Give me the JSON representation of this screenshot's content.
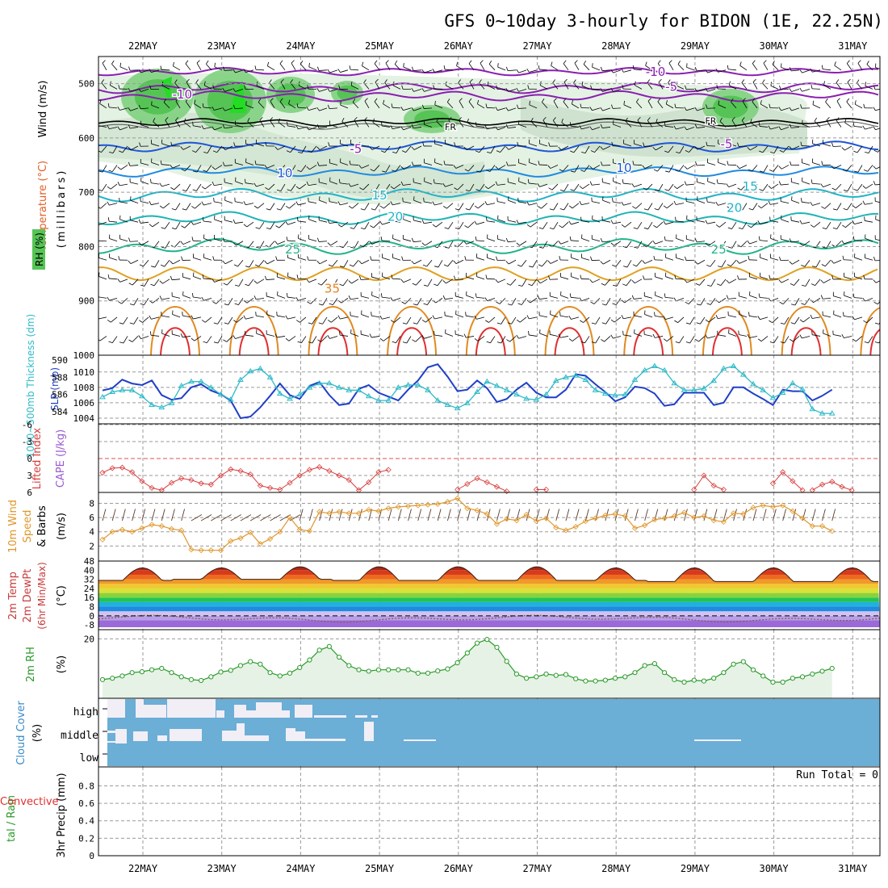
{
  "title": "GFS 0~10day 3-hourly for BIDON (1E, 22.25N)",
  "dates": [
    "22MAY",
    "23MAY",
    "24MAY",
    "25MAY",
    "26MAY",
    "27MAY",
    "28MAY",
    "29MAY",
    "30MAY",
    "31MAY"
  ],
  "colors": {
    "rh_green": "#55c455",
    "temp_purple": "#8a1fb0",
    "temp_blue": "#1f55d6",
    "temp_cyan": "#1fb4c8",
    "temp_orange": "#e0821f",
    "temp_red": "#e03030",
    "slp": "#1f3fc8",
    "thickness": "#2fbac8",
    "lifted_index": "#d83c3c",
    "wind10m": "#e0962a",
    "rh2m": "#2a9a2a",
    "cloud_cover": "#6baed6",
    "cloud_clear": "#f2eef6"
  },
  "chart_data": [
    {
      "panel": "upper-air",
      "type": "heatmap",
      "labels": {
        "wind": "Wind (m/s)",
        "temperature": "Temperature (°C)",
        "rh": "RH (%)",
        "pressure": "(millibars)"
      },
      "y_ticks": [
        500,
        600,
        700,
        800,
        900,
        1000
      ],
      "ylim": [
        1000,
        450
      ],
      "isotherms": [
        {
          "label": "-10",
          "x": 0.5,
          "p": 520
        },
        {
          "label": "-10",
          "x": 6.5,
          "p": 478
        },
        {
          "label": "-5",
          "x": 6.7,
          "p": 506
        },
        {
          "label": "FR",
          "x": 3.9,
          "p": 578
        },
        {
          "label": "FR",
          "x": 7.2,
          "p": 567
        },
        {
          "label": "-5",
          "x": 2.7,
          "p": 620
        },
        {
          "label": "-5",
          "x": 7.4,
          "p": 611
        },
        {
          "label": "10",
          "x": 1.8,
          "p": 665
        },
        {
          "label": "10",
          "x": 6.1,
          "p": 655
        },
        {
          "label": "15",
          "x": 3.0,
          "p": 706
        },
        {
          "label": "15",
          "x": 7.7,
          "p": 689
        },
        {
          "label": "20",
          "x": 3.2,
          "p": 745
        },
        {
          "label": "20",
          "x": 7.5,
          "p": 729
        },
        {
          "label": "25",
          "x": 1.9,
          "p": 805
        },
        {
          "label": "25",
          "x": 7.3,
          "p": 805
        },
        {
          "label": "35",
          "x": 2.4,
          "p": 877
        }
      ]
    },
    {
      "panel": "slp-thickness",
      "type": "line",
      "labels": {
        "thickness": "1000~500mb Thickness (dm)",
        "slp": "SLP (mb)"
      },
      "thickness_ticks": [
        584,
        586,
        588,
        590
      ],
      "slp_ticks": [
        1004,
        1006,
        1008,
        1010
      ],
      "x": [
        0.0,
        0.125,
        0.25,
        0.375,
        0.5,
        0.625,
        0.75,
        0.875,
        1.0,
        1.125,
        1.25,
        1.375,
        1.5,
        1.625,
        1.75,
        1.875,
        2.0,
        2.125,
        2.25,
        2.375,
        2.5,
        2.625,
        2.75,
        2.875,
        3.0,
        3.125,
        3.25,
        3.375,
        3.5,
        3.625,
        3.75,
        3.875,
        4.0,
        4.125,
        4.25,
        4.375,
        4.5,
        4.625,
        4.75,
        4.875,
        5.0,
        5.125,
        5.25,
        5.375,
        5.5,
        5.625,
        5.75,
        5.875,
        6.0,
        6.125,
        6.25,
        6.375,
        6.5,
        6.625,
        6.75,
        6.875,
        7.0,
        7.125,
        7.25,
        7.375,
        7.5,
        7.625,
        7.75,
        7.875,
        8.0,
        8.125,
        8.25,
        8.375,
        8.5,
        8.625,
        8.75,
        8.875,
        9.0,
        9.125,
        9.25
      ],
      "series": [
        {
          "name": "SLP (mb)",
          "values": [
            1007.6,
            1007.9,
            1009.0,
            1008.5,
            1008.3,
            1008.9,
            1007.0,
            1006.4,
            1006.6,
            1008.0,
            1008.4,
            1007.6,
            1007.1,
            1006.3,
            1004.0,
            1004.2,
            1005.4,
            1006.9,
            1008.5,
            1007.0,
            1006.5,
            1008.2,
            1008.7,
            1007.0,
            1005.7,
            1005.9,
            1007.8,
            1008.3,
            1007.3,
            1006.8,
            1006.3,
            1007.7,
            1008.9,
            1010.6,
            1011.0,
            1009.4,
            1007.5,
            1007.7,
            1008.9,
            1007.9,
            1006.1,
            1006.5,
            1007.7,
            1008.6,
            1007.3,
            1006.7,
            1006.7,
            1007.7,
            1009.7,
            1009.5,
            1008.4,
            1007.4,
            1006.2,
            1006.7,
            1008.1,
            1007.9,
            1007.2,
            1005.6,
            1005.8,
            1007.3,
            1007.3,
            1007.3,
            1005.7,
            1006.0,
            1008.0,
            1008.0,
            1007.2,
            1006.5,
            1005.7,
            1007.7,
            1007.5,
            1007.5,
            1006.3,
            1006.9,
            1007.7
          ]
        },
        {
          "name": "1000~500mb Thickness (dm)",
          "values": [
            585.7,
            586.3,
            586.5,
            586.5,
            585.8,
            584.8,
            584.5,
            585.0,
            587.0,
            587.5,
            587.5,
            586.8,
            586.0,
            585.4,
            587.7,
            588.7,
            589.0,
            588.0,
            586.1,
            585.5,
            586.0,
            586.8,
            587.3,
            587.3,
            586.8,
            586.5,
            586.5,
            585.8,
            585.3,
            585.3,
            586.8,
            587.1,
            587.1,
            586.5,
            585.3,
            584.8,
            584.4,
            585.0,
            586.3,
            587.5,
            587.0,
            586.5,
            586.0,
            585.5,
            585.4,
            586.0,
            587.6,
            588.0,
            588.2,
            587.7,
            586.5,
            586.1,
            585.9,
            586.0,
            587.7,
            588.8,
            589.3,
            588.8,
            587.3,
            586.5,
            586.5,
            586.7,
            587.6,
            589.0,
            589.3,
            588.3,
            587.2,
            586.5,
            585.6,
            586.2,
            587.3,
            586.6,
            584.3,
            583.8,
            583.8
          ]
        }
      ]
    },
    {
      "panel": "cape-li",
      "type": "line",
      "labels": {
        "li": "Lifted Index",
        "cape": "CAPE (J/kg)"
      },
      "li_ticks": [
        -6,
        -3,
        0,
        3,
        6
      ],
      "segments": [
        {
          "x": [
            0.0,
            0.125,
            0.25,
            0.375,
            0.5,
            0.625,
            0.75,
            0.875,
            1.0,
            1.125,
            1.25,
            1.375,
            1.5,
            1.625,
            1.75,
            1.875,
            2.0,
            2.125,
            2.25,
            2.375,
            2.5,
            2.625,
            2.75,
            2.875,
            3.0,
            3.125,
            3.25,
            3.375,
            3.5,
            3.625
          ],
          "values": [
            2.5,
            1.7,
            1.6,
            2.4,
            4.0,
            5.2,
            5.6,
            4.3,
            3.5,
            3.8,
            4.4,
            4.6,
            3.0,
            1.9,
            2.2,
            2.8,
            4.8,
            5.2,
            5.5,
            4.3,
            3.0,
            2.0,
            1.5,
            2.2,
            3.0,
            3.8,
            5.6,
            4.2,
            2.4,
            2.0
          ]
        },
        {
          "x": [
            4.5,
            4.625,
            4.75,
            4.875,
            5.0,
            5.125
          ],
          "values": [
            5.5,
            4.5,
            3.5,
            4.2,
            5.0,
            5.8
          ]
        },
        {
          "x": [
            5.5,
            5.625
          ],
          "values": [
            5.5,
            5.5
          ]
        },
        {
          "x": [
            7.5,
            7.625,
            7.75,
            7.875
          ],
          "values": [
            5.5,
            3.0,
            4.8,
            5.5
          ]
        },
        {
          "x": [
            8.5,
            8.625,
            8.75,
            8.875
          ],
          "values": [
            4.4,
            2.4,
            4.0,
            5.6
          ]
        },
        {
          "x": [
            9.0,
            9.125,
            9.25,
            9.375,
            9.5
          ],
          "values": [
            5.6,
            4.6,
            4.1,
            5.0,
            5.6
          ]
        }
      ]
    },
    {
      "panel": "wind10m",
      "type": "line",
      "labels": {
        "title": "10m Wind Speed & Barbs",
        "unit": "(m/s)"
      },
      "y_ticks": [
        2,
        4,
        6,
        8
      ],
      "x": [
        0.0,
        0.125,
        0.25,
        0.375,
        0.5,
        0.625,
        0.75,
        0.875,
        1.0,
        1.125,
        1.25,
        1.375,
        1.5,
        1.625,
        1.75,
        1.875,
        2.0,
        2.125,
        2.25,
        2.375,
        2.5,
        2.625,
        2.75,
        2.875,
        3.0,
        3.125,
        3.25,
        3.375,
        3.5,
        3.625,
        3.75,
        3.875,
        4.0,
        4.125,
        4.25,
        4.375,
        4.5,
        4.625,
        4.75,
        4.875,
        5.0,
        5.125,
        5.25,
        5.375,
        5.5,
        5.625,
        5.75,
        5.875,
        6.0,
        6.125,
        6.25,
        6.375,
        6.5,
        6.625,
        6.75,
        6.875,
        7.0,
        7.125,
        7.25,
        7.375,
        7.5,
        7.625,
        7.75,
        7.875,
        8.0,
        8.125,
        8.25,
        8.375,
        8.5,
        8.625,
        8.75,
        8.875,
        9.0,
        9.125,
        9.25
      ],
      "values": [
        2.9,
        4.0,
        4.3,
        4.0,
        4.5,
        5.0,
        4.8,
        4.4,
        4.2,
        1.5,
        1.4,
        1.4,
        1.4,
        2.7,
        3.1,
        3.9,
        2.3,
        3.0,
        4.0,
        6.0,
        4.3,
        4.1,
        6.8,
        6.6,
        6.8,
        6.6,
        6.6,
        7.1,
        6.9,
        7.3,
        7.5,
        7.6,
        7.7,
        7.8,
        7.9,
        8.2,
        8.7,
        7.3,
        7.0,
        6.5,
        5.1,
        5.8,
        5.6,
        6.4,
        5.5,
        5.9,
        4.6,
        4.2,
        4.7,
        5.5,
        5.9,
        6.3,
        6.5,
        6.2,
        4.5,
        4.9,
        5.7,
        5.9,
        6.2,
        6.7,
        6.0,
        6.2,
        5.6,
        5.4,
        6.6,
        6.5,
        7.4,
        7.7,
        7.5,
        7.7,
        6.9,
        5.9,
        4.8,
        4.8,
        4.1
      ]
    },
    {
      "panel": "temp2m",
      "type": "area",
      "labels": {
        "title": "2m Temp 2m DewPt (6hr Min/Max)",
        "unit": "(°C)"
      },
      "y_ticks": [
        -8,
        0,
        8,
        16,
        24,
        32,
        40,
        48
      ],
      "temp_min": [
        31,
        32,
        32,
        31,
        31,
        31,
        31,
        30,
        30,
        30
      ],
      "temp_max": [
        42,
        42,
        43,
        43,
        43,
        43,
        42,
        42,
        42,
        42
      ],
      "dewpt_mean": -2.5
    },
    {
      "panel": "rh2m",
      "type": "area",
      "labels": {
        "title": "2m RH",
        "unit": "(%)"
      },
      "y_ticks": [
        20
      ],
      "ylim": [
        0,
        23
      ],
      "x": [
        0.0,
        0.125,
        0.25,
        0.375,
        0.5,
        0.625,
        0.75,
        0.875,
        1.0,
        1.125,
        1.25,
        1.375,
        1.5,
        1.625,
        1.75,
        1.875,
        2.0,
        2.125,
        2.25,
        2.375,
        2.5,
        2.625,
        2.75,
        2.875,
        3.0,
        3.125,
        3.25,
        3.375,
        3.5,
        3.625,
        3.75,
        3.875,
        4.0,
        4.125,
        4.25,
        4.375,
        4.5,
        4.625,
        4.75,
        4.875,
        5.0,
        5.125,
        5.25,
        5.375,
        5.5,
        5.625,
        5.75,
        5.875,
        6.0,
        6.125,
        6.25,
        6.375,
        6.5,
        6.625,
        6.75,
        6.875,
        7.0,
        7.125,
        7.25,
        7.375,
        7.5,
        7.625,
        7.75,
        7.875,
        8.0,
        8.125,
        8.25,
        8.375,
        8.5,
        8.625,
        8.75,
        8.875,
        9.0,
        9.125,
        9.25
      ],
      "values": [
        5.5,
        6.0,
        6.8,
        8.0,
        8.3,
        9.0,
        9.5,
        8.0,
        6.5,
        5.5,
        5.2,
        6.5,
        8.2,
        8.8,
        10.5,
        11.9,
        11.0,
        8.0,
        6.8,
        7.8,
        9.8,
        12.5,
        16.0,
        17.3,
        13.5,
        10.5,
        9.0,
        8.5,
        9.0,
        9.0,
        9.0,
        9.0,
        7.8,
        7.8,
        8.6,
        9.3,
        11.5,
        15.0,
        18.5,
        19.8,
        17.0,
        12.0,
        7.5,
        6.0,
        6.5,
        7.5,
        7.0,
        7.3,
        5.8,
        5.0,
        5.0,
        5.3,
        6.0,
        6.5,
        8.0,
        10.5,
        11.2,
        8.0,
        5.5,
        4.6,
        5.3,
        5.0,
        6.0,
        8.0,
        11.0,
        11.9,
        9.0,
        6.8,
        4.6,
        4.6,
        6.0,
        6.5,
        7.5,
        8.5,
        9.5
      ]
    },
    {
      "panel": "cloud-cover",
      "type": "heatmap",
      "labels": {
        "title": "Cloud Cover",
        "unit": "(%)",
        "levels": [
          "high",
          "middle",
          "low"
        ]
      }
    },
    {
      "panel": "precip",
      "type": "bar",
      "labels": {
        "title": "Total / Rain Convective 3hr Precip (mm)",
        "run_total": "Run Total = 0"
      },
      "y_ticks": [
        0,
        0.2,
        0.4,
        0.6,
        0.8
      ],
      "ylim": [
        0,
        0.98
      ],
      "values": []
    }
  ]
}
